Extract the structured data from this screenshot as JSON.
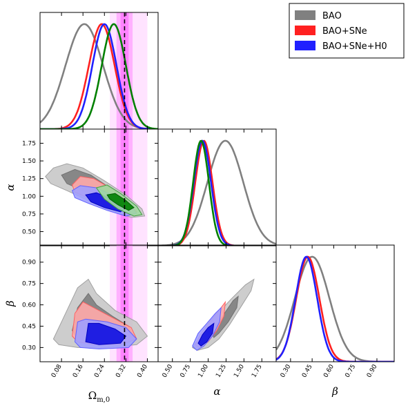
{
  "chart_data": {
    "type": "corner",
    "parameters": [
      {
        "key": "om",
        "label": "Ω",
        "sub": "m,0",
        "ticks": [
          0.08,
          0.16,
          0.24,
          0.32,
          0.4
        ],
        "tick_labels": [
          "0.08",
          "0.16",
          "0.24",
          "0.32",
          "0.40"
        ],
        "range": [
          0.0,
          0.44
        ]
      },
      {
        "key": "alpha",
        "label": "α",
        "ticks": [
          0.5,
          0.75,
          1.0,
          1.25,
          1.5,
          1.75
        ],
        "tick_labels": [
          "0.50",
          "0.75",
          "1.00",
          "1.25",
          "1.50",
          "1.75"
        ],
        "range": [
          0.3,
          1.95
        ]
      },
      {
        "key": "beta",
        "label": "β",
        "ticks": [
          0.3,
          0.45,
          0.6,
          0.75,
          0.9
        ],
        "tick_labels": [
          "0.30",
          "0.45",
          "0.60",
          "0.75",
          "0.90"
        ],
        "range": [
          0.2,
          1.02
        ]
      }
    ],
    "reference": {
      "om_line": 0.315,
      "band_inner": [
        0.3,
        0.33
      ],
      "band_outer": [
        0.285,
        0.345
      ],
      "band_wide": [
        0.26,
        0.4
      ]
    },
    "series": [
      {
        "name": "BAO",
        "color": "#808080",
        "peaks": {
          "om": {
            "mu": 0.165,
            "sigma": 0.07
          },
          "alpha": {
            "mu": 1.24,
            "sigma": 0.25
          },
          "beta": {
            "mu": 0.45,
            "sigma": 0.12
          }
        }
      },
      {
        "name": "BAO+SNe",
        "color": "#ff2020",
        "peaks": {
          "om": {
            "mu": 0.23,
            "sigma": 0.048
          },
          "alpha": {
            "mu": 0.94,
            "sigma": 0.12
          },
          "beta": {
            "mu": 0.42,
            "sigma": 0.08
          }
        }
      },
      {
        "name": "BAO+SNe+H0",
        "color": "#2020ff",
        "peaks": {
          "om": {
            "mu": 0.24,
            "sigma": 0.045
          },
          "alpha": {
            "mu": 0.92,
            "sigma": 0.12
          },
          "beta": {
            "mu": 0.41,
            "sigma": 0.075
          }
        }
      },
      {
        "name": "",
        "color": "#008000",
        "peaks": {
          "om": {
            "mu": 0.275,
            "sigma": 0.045
          },
          "alpha": {
            "mu": 0.9,
            "sigma": 0.11
          }
        }
      }
    ],
    "contours": {
      "om_alpha": [
        {
          "series": "BAO",
          "level": "outer",
          "fill": "#c8c8c8",
          "stroke": "#a0a0a0",
          "points": [
            [
              0.02,
              1.28
            ],
            [
              0.05,
              1.4
            ],
            [
              0.1,
              1.46
            ],
            [
              0.16,
              1.4
            ],
            [
              0.24,
              1.22
            ],
            [
              0.32,
              1.02
            ],
            [
              0.38,
              0.82
            ],
            [
              0.39,
              0.72
            ],
            [
              0.34,
              0.7
            ],
            [
              0.26,
              0.8
            ],
            [
              0.18,
              0.94
            ],
            [
              0.1,
              1.08
            ],
            [
              0.04,
              1.18
            ]
          ]
        },
        {
          "series": "BAO",
          "level": "inner",
          "fill": "#808080",
          "stroke": "#707070",
          "points": [
            [
              0.08,
              1.3
            ],
            [
              0.13,
              1.38
            ],
            [
              0.19,
              1.3
            ],
            [
              0.26,
              1.12
            ],
            [
              0.33,
              0.93
            ],
            [
              0.35,
              0.82
            ],
            [
              0.31,
              0.82
            ],
            [
              0.24,
              0.94
            ],
            [
              0.16,
              1.08
            ],
            [
              0.1,
              1.18
            ]
          ]
        },
        {
          "series": "BAO+SNe",
          "level": "outer",
          "fill": "#ffaaaa",
          "stroke": "#ff6060",
          "points": [
            [
              0.12,
              1.16
            ],
            [
              0.15,
              1.28
            ],
            [
              0.2,
              1.25
            ],
            [
              0.27,
              1.1
            ],
            [
              0.33,
              0.92
            ],
            [
              0.36,
              0.78
            ],
            [
              0.33,
              0.74
            ],
            [
              0.26,
              0.84
            ],
            [
              0.19,
              0.96
            ],
            [
              0.13,
              1.06
            ]
          ]
        },
        {
          "series": "BAO+SNe+H0",
          "level": "outer",
          "fill": "#a0a0ff",
          "stroke": "#6060ff",
          "points": [
            [
              0.12,
              1.08
            ],
            [
              0.15,
              1.15
            ],
            [
              0.21,
              1.12
            ],
            [
              0.28,
              1.0
            ],
            [
              0.34,
              0.86
            ],
            [
              0.36,
              0.76
            ],
            [
              0.32,
              0.72
            ],
            [
              0.25,
              0.8
            ],
            [
              0.18,
              0.9
            ],
            [
              0.13,
              0.98
            ]
          ]
        },
        {
          "series": "BAO+SNe+H0",
          "level": "inner",
          "fill": "#1010e0",
          "stroke": "#0000c0",
          "points": [
            [
              0.17,
              1.02
            ],
            [
              0.21,
              1.05
            ],
            [
              0.27,
              0.96
            ],
            [
              0.32,
              0.84
            ],
            [
              0.3,
              0.78
            ],
            [
              0.24,
              0.84
            ],
            [
              0.19,
              0.92
            ]
          ]
        },
        {
          "series": "",
          "level": "outer",
          "fill": "#a0d8a0",
          "stroke": "#40a040",
          "points": [
            [
              0.21,
              1.12
            ],
            [
              0.25,
              1.16
            ],
            [
              0.3,
              1.04
            ],
            [
              0.36,
              0.86
            ],
            [
              0.38,
              0.74
            ],
            [
              0.35,
              0.72
            ],
            [
              0.29,
              0.82
            ],
            [
              0.24,
              0.96
            ]
          ]
        },
        {
          "series": "",
          "level": "inner",
          "fill": "#008000",
          "stroke": "#006000",
          "points": [
            [
              0.25,
              1.02
            ],
            [
              0.28,
              1.04
            ],
            [
              0.32,
              0.94
            ],
            [
              0.35,
              0.84
            ],
            [
              0.33,
              0.8
            ],
            [
              0.29,
              0.88
            ],
            [
              0.26,
              0.96
            ]
          ]
        }
      ],
      "om_beta": [
        {
          "series": "BAO",
          "level": "outer",
          "fill": "#c8c8c8",
          "stroke": "#a0a0a0",
          "points": [
            [
              0.05,
              0.36
            ],
            [
              0.1,
              0.56
            ],
            [
              0.14,
              0.72
            ],
            [
              0.18,
              0.78
            ],
            [
              0.21,
              0.68
            ],
            [
              0.28,
              0.56
            ],
            [
              0.36,
              0.48
            ],
            [
              0.4,
              0.38
            ],
            [
              0.36,
              0.32
            ],
            [
              0.25,
              0.3
            ],
            [
              0.14,
              0.3
            ],
            [
              0.07,
              0.32
            ]
          ]
        },
        {
          "series": "BAO",
          "level": "inner",
          "fill": "#808080",
          "stroke": "#707070",
          "points": [
            [
              0.12,
              0.42
            ],
            [
              0.14,
              0.58
            ],
            [
              0.18,
              0.68
            ],
            [
              0.21,
              0.6
            ],
            [
              0.27,
              0.52
            ],
            [
              0.33,
              0.45
            ],
            [
              0.35,
              0.38
            ],
            [
              0.3,
              0.33
            ],
            [
              0.2,
              0.33
            ],
            [
              0.14,
              0.36
            ]
          ]
        },
        {
          "series": "BAO+SNe",
          "level": "outer",
          "fill": "#ffaaaa",
          "stroke": "#ff6060",
          "points": [
            [
              0.12,
              0.38
            ],
            [
              0.13,
              0.54
            ],
            [
              0.16,
              0.62
            ],
            [
              0.2,
              0.58
            ],
            [
              0.28,
              0.5
            ],
            [
              0.34,
              0.44
            ],
            [
              0.36,
              0.36
            ],
            [
              0.3,
              0.32
            ],
            [
              0.2,
              0.32
            ],
            [
              0.14,
              0.34
            ]
          ]
        },
        {
          "series": "BAO+SNe+H0",
          "level": "outer",
          "fill": "#a0a0ff",
          "stroke": "#6060ff",
          "points": [
            [
              0.13,
              0.34
            ],
            [
              0.14,
              0.48
            ],
            [
              0.17,
              0.5
            ],
            [
              0.25,
              0.48
            ],
            [
              0.32,
              0.44
            ],
            [
              0.36,
              0.36
            ],
            [
              0.33,
              0.3
            ],
            [
              0.22,
              0.29
            ],
            [
              0.15,
              0.3
            ]
          ]
        },
        {
          "series": "BAO+SNe+H0",
          "level": "inner",
          "fill": "#1010e0",
          "stroke": "#0000c0",
          "points": [
            [
              0.17,
              0.34
            ],
            [
              0.18,
              0.47
            ],
            [
              0.22,
              0.47
            ],
            [
              0.28,
              0.43
            ],
            [
              0.32,
              0.38
            ],
            [
              0.3,
              0.33
            ],
            [
              0.22,
              0.32
            ]
          ]
        }
      ],
      "alpha_beta": [
        {
          "series": "BAO",
          "level": "outer",
          "fill": "#c8c8c8",
          "stroke": "#a0a0a0",
          "points": [
            [
              0.78,
              0.3
            ],
            [
              0.92,
              0.4
            ],
            [
              1.1,
              0.52
            ],
            [
              1.32,
              0.64
            ],
            [
              1.52,
              0.74
            ],
            [
              1.64,
              0.78
            ],
            [
              1.6,
              0.7
            ],
            [
              1.45,
              0.58
            ],
            [
              1.3,
              0.46
            ],
            [
              1.15,
              0.36
            ],
            [
              1.0,
              0.3
            ],
            [
              0.85,
              0.28
            ]
          ]
        },
        {
          "series": "BAO",
          "level": "inner",
          "fill": "#808080",
          "stroke": "#707070",
          "points": [
            [
              1.05,
              0.4
            ],
            [
              1.2,
              0.52
            ],
            [
              1.35,
              0.63
            ],
            [
              1.42,
              0.66
            ],
            [
              1.4,
              0.58
            ],
            [
              1.28,
              0.48
            ],
            [
              1.15,
              0.4
            ],
            [
              1.08,
              0.37
            ]
          ]
        },
        {
          "series": "BAO+SNe",
          "level": "outer",
          "fill": "#ffaaaa",
          "stroke": "#ff6060",
          "points": [
            [
              0.82,
              0.32
            ],
            [
              0.9,
              0.4
            ],
            [
              1.02,
              0.48
            ],
            [
              1.15,
              0.56
            ],
            [
              1.24,
              0.62
            ],
            [
              1.22,
              0.52
            ],
            [
              1.12,
              0.42
            ],
            [
              1.0,
              0.34
            ],
            [
              0.88,
              0.3
            ]
          ]
        },
        {
          "series": "BAO+SNe+H0",
          "level": "outer",
          "fill": "#a0a0ff",
          "stroke": "#6060ff",
          "points": [
            [
              0.78,
              0.31
            ],
            [
              0.86,
              0.4
            ],
            [
              0.98,
              0.47
            ],
            [
              1.1,
              0.54
            ],
            [
              1.18,
              0.58
            ],
            [
              1.16,
              0.48
            ],
            [
              1.06,
              0.38
            ],
            [
              0.94,
              0.31
            ],
            [
              0.84,
              0.28
            ]
          ]
        },
        {
          "series": "BAO+SNe+H0",
          "level": "inner",
          "fill": "#1010e0",
          "stroke": "#0000c0",
          "points": [
            [
              0.86,
              0.33
            ],
            [
              0.92,
              0.39
            ],
            [
              1.0,
              0.44
            ],
            [
              1.08,
              0.47
            ],
            [
              1.06,
              0.4
            ],
            [
              0.98,
              0.34
            ],
            [
              0.9,
              0.31
            ]
          ]
        }
      ]
    },
    "legend": {
      "position": "top-right",
      "entries": [
        "BAO",
        "BAO+SNe",
        "BAO+SNe+H0"
      ]
    }
  }
}
